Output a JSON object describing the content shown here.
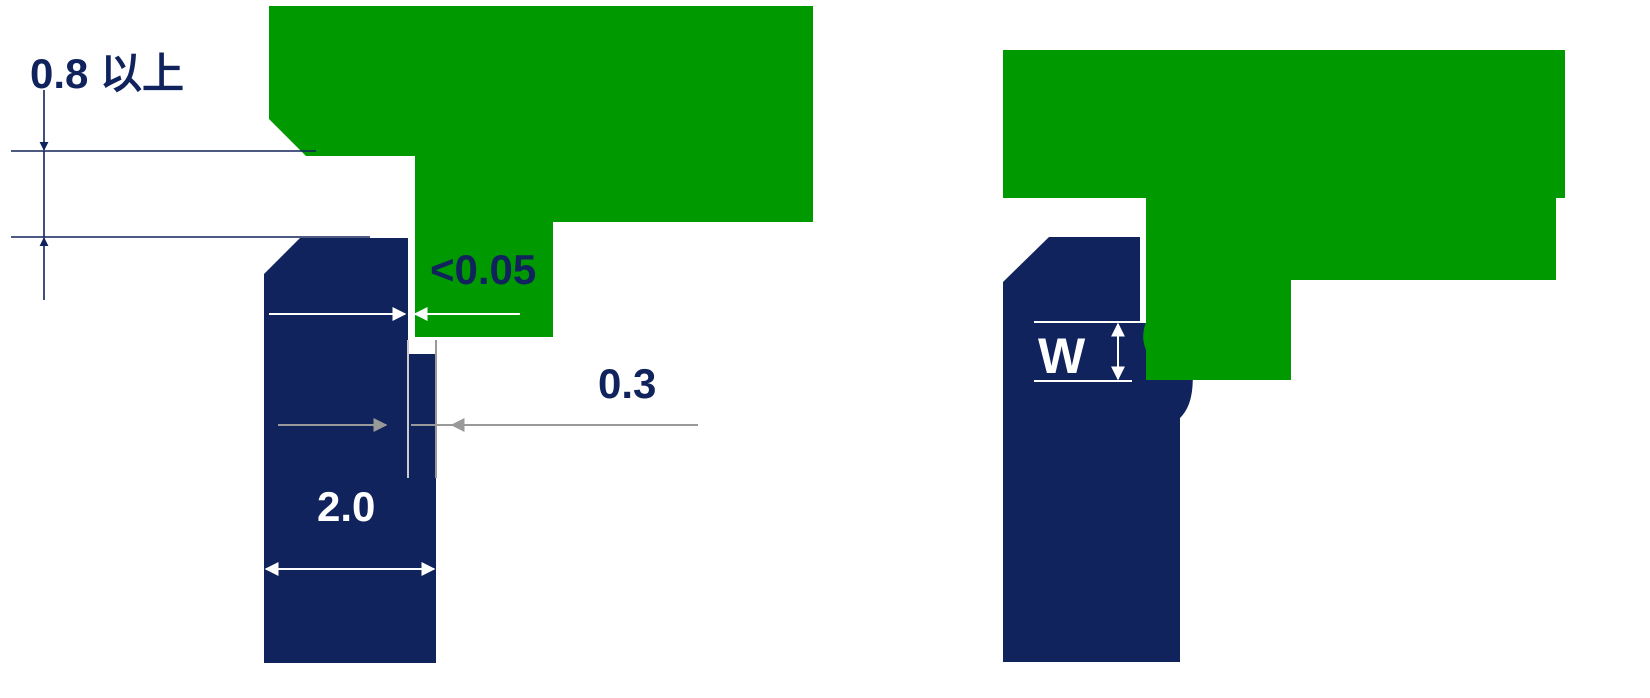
{
  "colors": {
    "navy": "#10235c",
    "green": "#009a00",
    "white": "#ffffff",
    "gray": "#999999",
    "background": "#ffffff"
  },
  "labels": {
    "min_gap": "0.8 以上",
    "clearance": "<0.05",
    "offset": "0.3",
    "width": "2.0",
    "w_symbol": "W"
  }
}
